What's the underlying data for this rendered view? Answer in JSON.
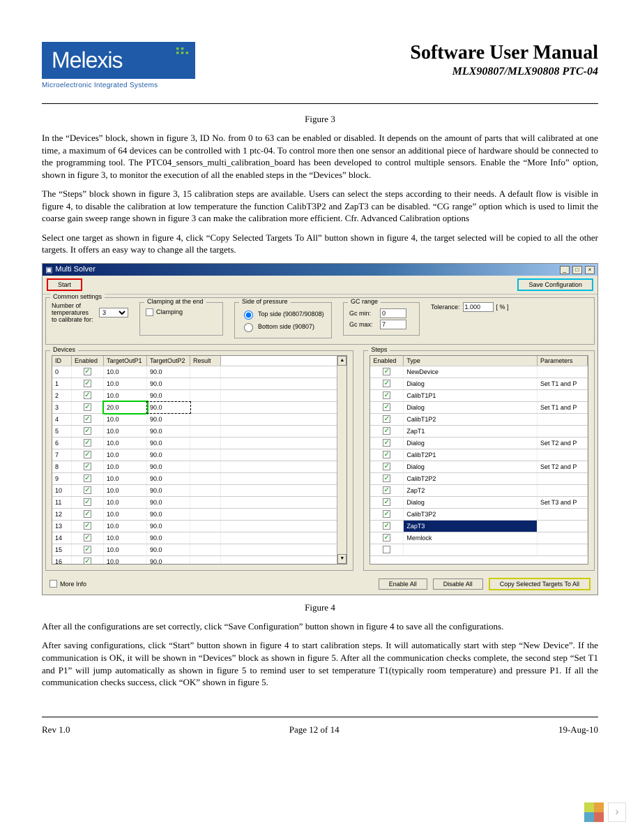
{
  "logo": {
    "text": "Melexis",
    "sub": "Microelectronic Integrated Systems"
  },
  "title": "Software User Manual",
  "subtitle": "MLX90807/MLX90808 PTC-04",
  "fig3_caption": "Figure 3",
  "para1": "In the “Devices” block, shown in figure 3, ID No. from 0 to 63 can be enabled or disabled. It depends on the amount of parts that will calibrated at one time, a maximum of 64 devices can be controlled with 1 ptc-04. To control more then one sensor an additional piece of hardware should be connected to the programming tool. The PTC04_sensors_multi_calibration_board has been developed to control multiple sensors. Enable the “More Info” option, shown in figure 3, to monitor the execution of all the enabled steps in the “Devices” block.",
  "para2": "The “Steps” block shown in figure 3, 15 calibration steps are available. Users can select the steps according to  their needs.  A default flow is visible in figure 4, to disable the  calibration at low temperature the function CalibT3P2 and ZapT3 can be disabled. “CG range” option which is used to limit the coarse gain sweep range shown in figure 3 can make the calibration more efficient. Cfr. Advanced Calibration options",
  "para3": "Select one target as shown in figure 4, click “Copy Selected Targets To All” button shown in figure 4, the target selected will be copied to all the other targets. It offers an easy way to change all the targets.",
  "window": {
    "title": "Multi Solver",
    "start": "Start",
    "save": "Save Configuration",
    "common_legend": "Common settings",
    "num_label": "Number of temperatures to calibrate for:",
    "num_value": "3",
    "clamp_legend": "Clamping at the end",
    "clamp_label": "Clamping",
    "side_legend": "Side of pressure",
    "side_top": "Top side (90807/90808)",
    "side_bottom": "Bottom side (90807)",
    "gc_legend": "GC range",
    "gc_min_label": "Gc min:",
    "gc_min": "0",
    "gc_max_label": "Gc max:",
    "gc_max": "7",
    "tol_label": "Tolerance:",
    "tol_value": "1.000",
    "tol_unit": "[ % ]",
    "devices_legend": "Devices",
    "steps_legend": "Steps",
    "dev_head": {
      "id": "ID",
      "en": "Enabled",
      "t1": "TargetOutP1",
      "t2": "TargetOutP2",
      "res": "Result"
    },
    "step_head": {
      "en": "Enabled",
      "type": "Type",
      "param": "Parameters"
    },
    "more_info": "More Info",
    "enable_all": "Enable All",
    "disable_all": "Disable All",
    "copy_all": "Copy Selected Targets To All"
  },
  "devices": [
    {
      "id": "0",
      "t1": "10.0",
      "t2": "90.0"
    },
    {
      "id": "1",
      "t1": "10.0",
      "t2": "90.0"
    },
    {
      "id": "2",
      "t1": "10.0",
      "t2": "90.0"
    },
    {
      "id": "3",
      "t1": "20.0",
      "t2": "90.0",
      "hl": true
    },
    {
      "id": "4",
      "t1": "10.0",
      "t2": "90.0"
    },
    {
      "id": "5",
      "t1": "10.0",
      "t2": "90.0"
    },
    {
      "id": "6",
      "t1": "10.0",
      "t2": "90.0"
    },
    {
      "id": "7",
      "t1": "10.0",
      "t2": "90.0"
    },
    {
      "id": "8",
      "t1": "10.0",
      "t2": "90.0"
    },
    {
      "id": "9",
      "t1": "10.0",
      "t2": "90.0"
    },
    {
      "id": "10",
      "t1": "10.0",
      "t2": "90.0"
    },
    {
      "id": "11",
      "t1": "10.0",
      "t2": "90.0"
    },
    {
      "id": "12",
      "t1": "10.0",
      "t2": "90.0"
    },
    {
      "id": "13",
      "t1": "10.0",
      "t2": "90.0"
    },
    {
      "id": "14",
      "t1": "10.0",
      "t2": "90.0"
    },
    {
      "id": "15",
      "t1": "10.0",
      "t2": "90.0"
    },
    {
      "id": "16",
      "t1": "10.0",
      "t2": "90.0"
    }
  ],
  "steps": [
    {
      "type": "NewDevice",
      "param": "",
      "en": true
    },
    {
      "type": "Dialog",
      "param": "Set T1 and P",
      "en": true
    },
    {
      "type": "CalibT1P1",
      "param": "",
      "en": true
    },
    {
      "type": "Dialog",
      "param": "Set T1 and P",
      "en": true
    },
    {
      "type": "CalibT1P2",
      "param": "",
      "en": true
    },
    {
      "type": "ZapT1",
      "param": "",
      "en": true
    },
    {
      "type": "Dialog",
      "param": "Set T2 and P",
      "en": true
    },
    {
      "type": "CalibT2P1",
      "param": "",
      "en": true
    },
    {
      "type": "Dialog",
      "param": "Set T2 and P",
      "en": true
    },
    {
      "type": "CalibT2P2",
      "param": "",
      "en": true
    },
    {
      "type": "ZapT2",
      "param": "",
      "en": true
    },
    {
      "type": "Dialog",
      "param": "Set T3 and P",
      "en": true
    },
    {
      "type": "CalibT3P2",
      "param": "",
      "en": true
    },
    {
      "type": "ZapT3",
      "param": "",
      "en": true,
      "sel": true
    },
    {
      "type": "Memlock",
      "param": "",
      "en": true
    },
    {
      "type": "",
      "param": "",
      "en": false
    }
  ],
  "fig4_caption": "Figure 4",
  "para4": "After all the configurations are set correctly, click “Save Configuration” button shown in figure 4 to save all the configurations.",
  "para5": "After saving configurations, click “Start” button shown in figure 4 to start calibration steps. It will automatically start with step “New Device”. If the communication is OK, it will be shown in “Devices” block as shown in figure 5. After all the communication checks complete, the second step “Set T1 and P1” will jump automatically as shown in figure 5 to remind user to set temperature T1(typically room temperature) and pressure P1. If all the communication checks success, click “OK” shown in figure 5.",
  "footer": {
    "rev": "Rev 1.0",
    "page": "Page 12 of 14",
    "date": "19-Aug-10"
  }
}
